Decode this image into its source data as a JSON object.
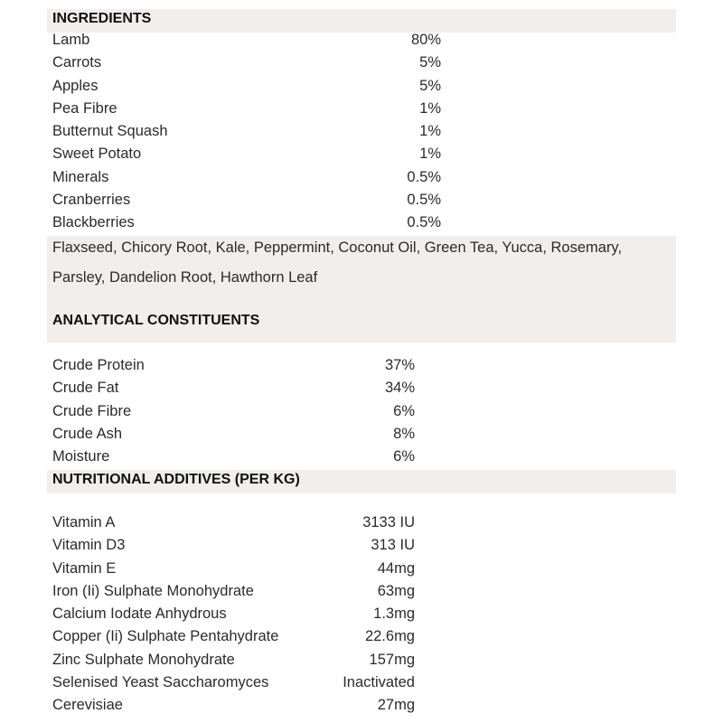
{
  "ingredients": {
    "title": "INGREDIENTS",
    "items": [
      {
        "name": "Lamb",
        "value": "80%"
      },
      {
        "name": "Carrots",
        "value": "5%"
      },
      {
        "name": "Apples",
        "value": "5%"
      },
      {
        "name": "Pea Fibre",
        "value": "1%"
      },
      {
        "name": "Butternut Squash",
        "value": "1%"
      },
      {
        "name": "Sweet Potato",
        "value": "1%"
      },
      {
        "name": "Minerals",
        "value": "0.5%"
      },
      {
        "name": "Cranberries",
        "value": "0.5%"
      },
      {
        "name": "Blackberries",
        "value": "0.5%"
      }
    ],
    "other": "Flaxseed, Chicory Root, Kale, Peppermint, Coconut Oil, Green Tea, Yucca, Rosemary, Parsley, Dandelion Root, Hawthorn Leaf"
  },
  "analytical": {
    "title": "ANALYTICAL CONSTITUENTS",
    "items": [
      {
        "name": "Crude Protein",
        "value": "37%"
      },
      {
        "name": "Crude Fat",
        "value": "34%"
      },
      {
        "name": "Crude Fibre",
        "value": "6%"
      },
      {
        "name": "Crude Ash",
        "value": "8%"
      },
      {
        "name": "Moisture",
        "value": "6%"
      }
    ]
  },
  "additives": {
    "title": "NUTRITIONAL ADDITIVES (PER KG)",
    "items": [
      {
        "name": "Vitamin A",
        "value": "3133 IU"
      },
      {
        "name": "Vitamin D3",
        "value": "313 IU"
      },
      {
        "name": "Vitamin E",
        "value": "44mg"
      },
      {
        "name": "Iron (Ii) Sulphate Monohydrate",
        "value": "63mg"
      },
      {
        "name": "Calcium Iodate Anhydrous",
        "value": "1.3mg"
      },
      {
        "name": "Copper (Ii) Sulphate Pentahydrate",
        "value": "22.6mg"
      },
      {
        "name": "Zinc Sulphate Monohydrate",
        "value": "157mg"
      },
      {
        "name": "Selenised Yeast Saccharomyces",
        "value": "Inactivated"
      },
      {
        "name": "Cerevisiae",
        "value": "27mg"
      }
    ]
  }
}
